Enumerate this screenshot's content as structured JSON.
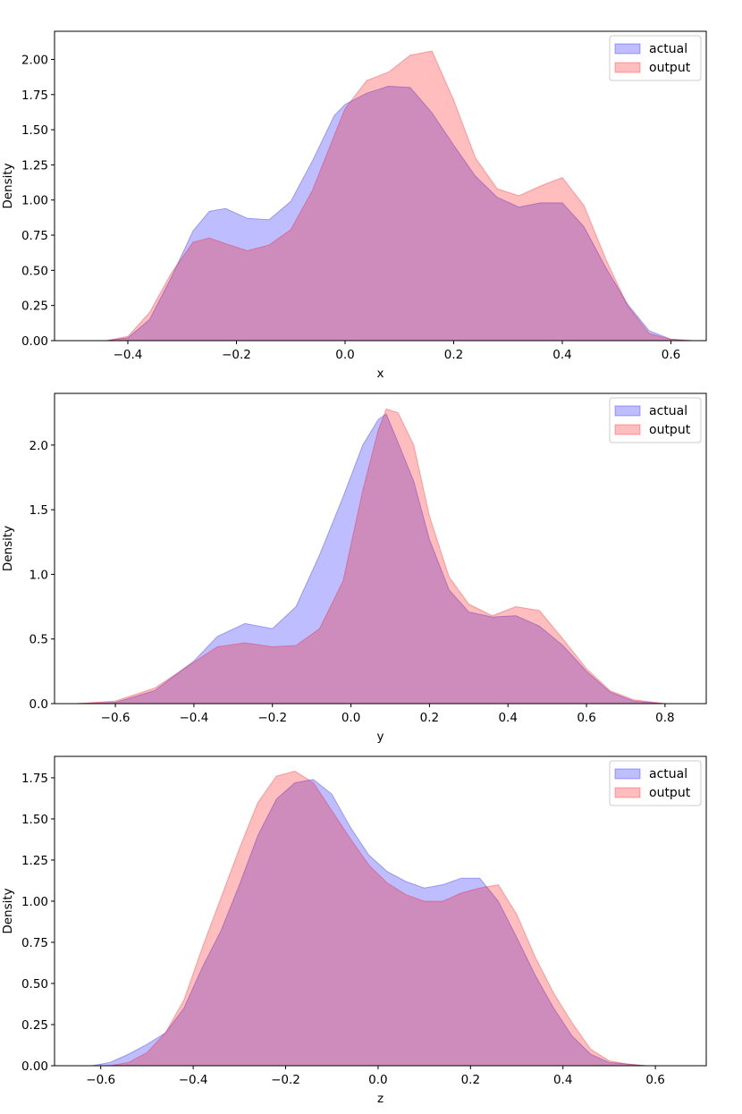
{
  "colors": {
    "actual": "#0000ff",
    "output": "#ff0000",
    "fill_opacity": 0.26
  },
  "chart_data": [
    {
      "type": "area",
      "title": "",
      "xlabel": "x",
      "ylabel": "Density",
      "xlim": [
        -0.535,
        0.665
      ],
      "ylim": [
        0,
        2.2
      ],
      "xticks": [
        -0.4,
        -0.2,
        0.0,
        0.2,
        0.4,
        0.6
      ],
      "xtick_labels": [
        "−0.4",
        "−0.2",
        "0.0",
        "0.2",
        "0.4",
        "0.6"
      ],
      "yticks": [
        0,
        0.25,
        0.5,
        0.75,
        1.0,
        1.25,
        1.5,
        1.75,
        2.0
      ],
      "ytick_labels": [
        "0.00",
        "0.25",
        "0.50",
        "0.75",
        "1.00",
        "1.25",
        "1.50",
        "1.75",
        "2.00"
      ],
      "legend": {
        "position": "top-right",
        "entries": [
          "actual",
          "output"
        ]
      },
      "series": [
        {
          "name": "actual",
          "x": [
            -0.5,
            -0.44,
            -0.4,
            -0.36,
            -0.32,
            -0.28,
            -0.25,
            -0.22,
            -0.18,
            -0.14,
            -0.1,
            -0.06,
            -0.02,
            0.0,
            0.04,
            0.08,
            0.12,
            0.16,
            0.2,
            0.24,
            0.28,
            0.32,
            0.36,
            0.4,
            0.44,
            0.48,
            0.52,
            0.56,
            0.6,
            0.64
          ],
          "y": [
            0.0,
            0.0,
            0.02,
            0.15,
            0.45,
            0.78,
            0.92,
            0.94,
            0.87,
            0.86,
            0.99,
            1.28,
            1.6,
            1.68,
            1.76,
            1.81,
            1.8,
            1.62,
            1.39,
            1.17,
            1.02,
            0.95,
            0.98,
            0.98,
            0.81,
            0.52,
            0.26,
            0.07,
            0.01,
            0.0
          ]
        },
        {
          "name": "output",
          "x": [
            -0.5,
            -0.44,
            -0.4,
            -0.36,
            -0.32,
            -0.28,
            -0.25,
            -0.22,
            -0.18,
            -0.14,
            -0.1,
            -0.06,
            -0.02,
            0.0,
            0.04,
            0.08,
            0.12,
            0.16,
            0.2,
            0.24,
            0.28,
            0.32,
            0.36,
            0.4,
            0.44,
            0.48,
            0.52,
            0.56,
            0.6,
            0.64
          ],
          "y": [
            0.0,
            0.0,
            0.03,
            0.2,
            0.48,
            0.7,
            0.73,
            0.69,
            0.64,
            0.68,
            0.79,
            1.07,
            1.46,
            1.65,
            1.85,
            1.91,
            2.03,
            2.06,
            1.71,
            1.3,
            1.08,
            1.03,
            1.1,
            1.16,
            0.96,
            0.58,
            0.25,
            0.05,
            0.01,
            0.0
          ]
        }
      ]
    },
    {
      "type": "area",
      "title": "",
      "xlabel": "y",
      "ylabel": "Density",
      "xlim": [
        -0.755,
        0.905
      ],
      "ylim": [
        0,
        2.4
      ],
      "xticks": [
        -0.6,
        -0.4,
        -0.2,
        0.0,
        0.2,
        0.4,
        0.6,
        0.8
      ],
      "xtick_labels": [
        "−0.6",
        "−0.4",
        "−0.2",
        "0.0",
        "0.2",
        "0.4",
        "0.6",
        "0.8"
      ],
      "yticks": [
        0,
        0.5,
        1.0,
        1.5,
        2.0
      ],
      "ytick_labels": [
        "0.0",
        "0.5",
        "1.0",
        "1.5",
        "2.0"
      ],
      "legend": {
        "position": "top-right",
        "entries": [
          "actual",
          "output"
        ]
      },
      "series": [
        {
          "name": "actual",
          "x": [
            -0.7,
            -0.6,
            -0.5,
            -0.4,
            -0.34,
            -0.27,
            -0.2,
            -0.14,
            -0.08,
            -0.02,
            0.03,
            0.07,
            0.09,
            0.12,
            0.16,
            0.2,
            0.25,
            0.3,
            0.36,
            0.42,
            0.48,
            0.54,
            0.6,
            0.66,
            0.72,
            0.8
          ],
          "y": [
            0.0,
            0.01,
            0.1,
            0.33,
            0.52,
            0.62,
            0.58,
            0.75,
            1.15,
            1.6,
            2.0,
            2.2,
            2.24,
            2.02,
            1.72,
            1.27,
            0.88,
            0.71,
            0.67,
            0.68,
            0.6,
            0.45,
            0.25,
            0.09,
            0.02,
            0.0
          ]
        },
        {
          "name": "output",
          "x": [
            -0.7,
            -0.6,
            -0.5,
            -0.4,
            -0.34,
            -0.27,
            -0.2,
            -0.14,
            -0.08,
            -0.02,
            0.03,
            0.07,
            0.09,
            0.12,
            0.16,
            0.2,
            0.25,
            0.3,
            0.36,
            0.42,
            0.48,
            0.54,
            0.6,
            0.66,
            0.72,
            0.8
          ],
          "y": [
            0.0,
            0.02,
            0.12,
            0.32,
            0.44,
            0.47,
            0.44,
            0.45,
            0.58,
            0.95,
            1.65,
            2.12,
            2.28,
            2.25,
            2.0,
            1.45,
            0.98,
            0.77,
            0.68,
            0.75,
            0.72,
            0.5,
            0.27,
            0.1,
            0.03,
            0.0
          ]
        }
      ]
    },
    {
      "type": "area",
      "title": "",
      "xlabel": "z",
      "ylabel": "Density",
      "xlim": [
        -0.7,
        0.71
      ],
      "ylim": [
        0,
        1.88
      ],
      "xticks": [
        -0.6,
        -0.4,
        -0.2,
        0.0,
        0.2,
        0.4,
        0.6
      ],
      "xtick_labels": [
        "−0.6",
        "−0.4",
        "−0.2",
        "0.0",
        "0.2",
        "0.4",
        "0.6"
      ],
      "yticks": [
        0,
        0.25,
        0.5,
        0.75,
        1.0,
        1.25,
        1.5,
        1.75
      ],
      "ytick_labels": [
        "0.00",
        "0.25",
        "0.50",
        "0.75",
        "1.00",
        "1.25",
        "1.50",
        "1.75"
      ],
      "legend": {
        "position": "top-right",
        "entries": [
          "actual",
          "output"
        ]
      },
      "series": [
        {
          "name": "actual",
          "x": [
            -0.62,
            -0.58,
            -0.54,
            -0.5,
            -0.46,
            -0.42,
            -0.38,
            -0.34,
            -0.3,
            -0.26,
            -0.22,
            -0.18,
            -0.14,
            -0.1,
            -0.06,
            -0.02,
            0.02,
            0.06,
            0.1,
            0.14,
            0.18,
            0.22,
            0.26,
            0.3,
            0.34,
            0.38,
            0.42,
            0.46,
            0.5,
            0.54,
            0.58,
            0.62
          ],
          "y": [
            0.0,
            0.02,
            0.07,
            0.13,
            0.2,
            0.35,
            0.6,
            0.82,
            1.1,
            1.4,
            1.62,
            1.72,
            1.74,
            1.65,
            1.45,
            1.28,
            1.18,
            1.12,
            1.08,
            1.1,
            1.14,
            1.14,
            1.0,
            0.78,
            0.55,
            0.35,
            0.18,
            0.07,
            0.02,
            0.01,
            0.0,
            0.0
          ]
        },
        {
          "name": "output",
          "x": [
            -0.62,
            -0.58,
            -0.54,
            -0.5,
            -0.46,
            -0.42,
            -0.38,
            -0.34,
            -0.3,
            -0.26,
            -0.22,
            -0.18,
            -0.14,
            -0.1,
            -0.06,
            -0.02,
            0.02,
            0.06,
            0.1,
            0.14,
            0.18,
            0.22,
            0.26,
            0.3,
            0.34,
            0.38,
            0.42,
            0.46,
            0.5,
            0.54,
            0.58,
            0.62
          ],
          "y": [
            0.0,
            0.0,
            0.02,
            0.08,
            0.2,
            0.4,
            0.72,
            1.02,
            1.32,
            1.6,
            1.76,
            1.79,
            1.72,
            1.55,
            1.38,
            1.22,
            1.11,
            1.04,
            1.0,
            1.0,
            1.05,
            1.08,
            1.1,
            0.92,
            0.66,
            0.44,
            0.26,
            0.1,
            0.03,
            0.01,
            0.0,
            0.0
          ]
        }
      ]
    }
  ]
}
